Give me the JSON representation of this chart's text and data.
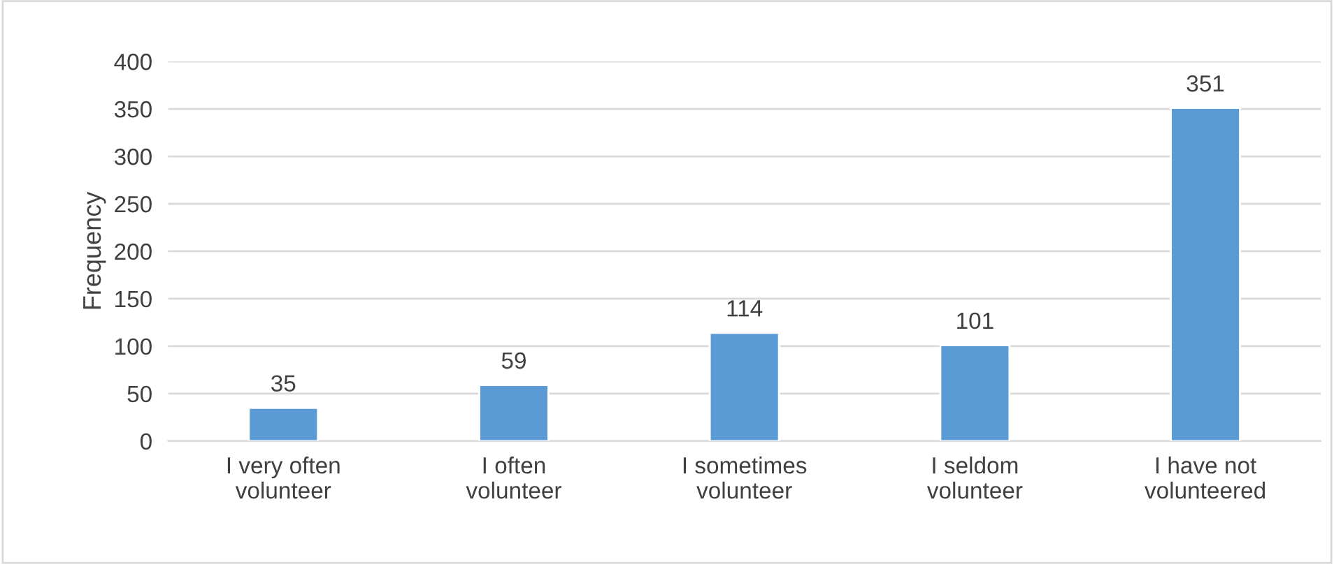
{
  "chart_data": {
    "type": "bar",
    "ylabel": "Frequency",
    "categories": [
      "I very often\nvolunteer",
      "I often\nvolunteer",
      "I sometimes\nvolunteer",
      "I seldom\nvolunteer",
      "I have not\nvolunteered"
    ],
    "values": [
      35,
      59,
      114,
      101,
      351
    ],
    "color": "#5b9bd5",
    "ylim": [
      0,
      400
    ],
    "yticks": [
      0,
      50,
      100,
      150,
      200,
      250,
      300,
      350,
      400
    ],
    "grid": "y",
    "data_labels": true
  }
}
